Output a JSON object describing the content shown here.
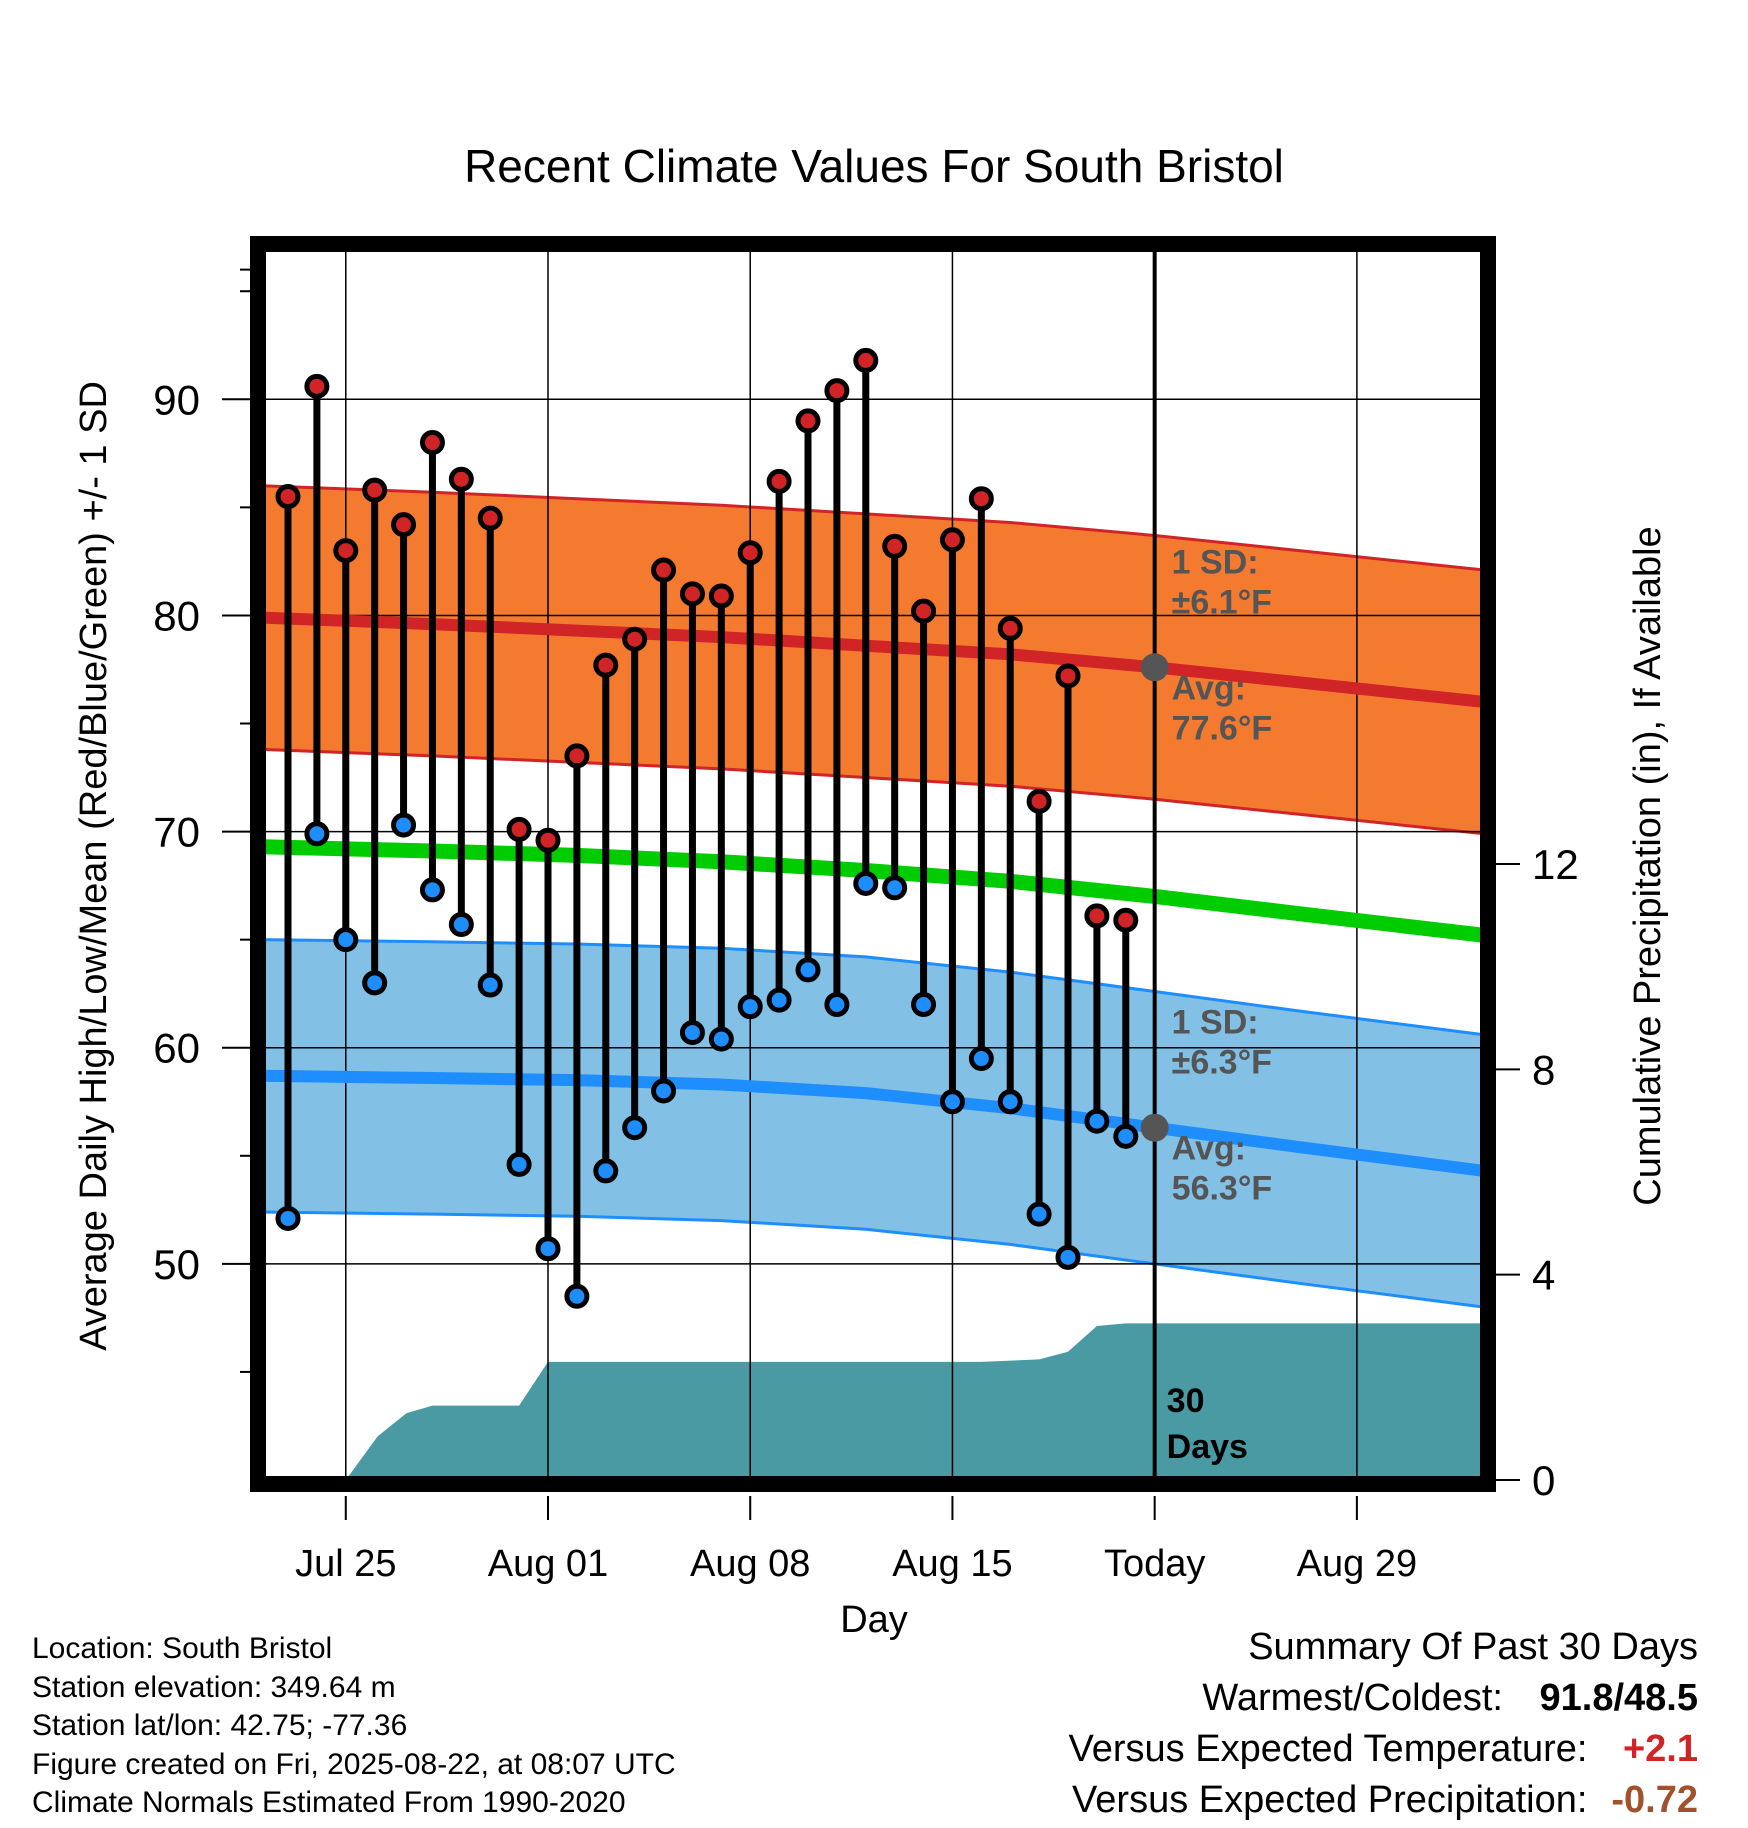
{
  "chart_data": {
    "type": "line",
    "title": "Recent Climate Values For South Bristol",
    "xlabel": "Day",
    "ylabel": "Average Daily High/Low/Mean (Red/Blue/Green) +/- 1 SD",
    "y2label": "Cumulative Precipitation (in), If Available",
    "ylim": [
      40,
      97
    ],
    "y2lim": [
      0,
      24
    ],
    "xlim": [
      -0.9,
      41.4
    ],
    "x_ticks": [
      {
        "day": 2,
        "label": "Jul 25"
      },
      {
        "day": 9,
        "label": "Aug 01"
      },
      {
        "day": 16,
        "label": "Aug 08"
      },
      {
        "day": 23,
        "label": "Aug 15"
      },
      {
        "day": 30,
        "label": "Today"
      },
      {
        "day": 37,
        "label": "Aug 29"
      }
    ],
    "y_ticks": [
      50,
      60,
      70,
      80,
      90
    ],
    "y2_ticks": [
      0,
      4,
      8,
      12
    ],
    "grid": true,
    "today_day": 30,
    "today_label": [
      "30",
      "Days"
    ],
    "highs": [
      85.5,
      90.6,
      83.0,
      85.8,
      84.2,
      88.0,
      86.3,
      84.5,
      70.1,
      69.6,
      73.5,
      77.7,
      78.9,
      82.1,
      81.0,
      80.9,
      82.9,
      86.2,
      89.0,
      90.4,
      91.8,
      83.2,
      80.2,
      83.5,
      85.4,
      79.4,
      71.4,
      77.2,
      66.1,
      65.9
    ],
    "lows": [
      52.1,
      69.9,
      65.0,
      63.0,
      70.3,
      67.3,
      65.7,
      62.9,
      54.6,
      50.7,
      48.5,
      54.3,
      56.3,
      58.0,
      60.7,
      60.4,
      61.9,
      62.2,
      63.6,
      62.0,
      67.6,
      67.4,
      62.0,
      57.5,
      59.5,
      57.5,
      52.3,
      50.3,
      56.6,
      55.9
    ],
    "normals": {
      "days": [
        -0.9,
        5,
        10,
        15,
        20,
        25,
        30,
        35,
        41.4
      ],
      "high_mean": [
        79.9,
        79.6,
        79.3,
        79.0,
        78.6,
        78.2,
        77.6,
        76.9,
        76.0
      ],
      "high_sd": 6.1,
      "low_mean": [
        58.7,
        58.6,
        58.5,
        58.3,
        57.9,
        57.2,
        56.3,
        55.4,
        54.3
      ],
      "low_sd": 6.3,
      "mean": [
        69.3,
        69.1,
        68.9,
        68.6,
        68.2,
        67.7,
        67.0,
        66.2,
        65.2
      ]
    },
    "precip_cumulative": {
      "days": [
        2.0,
        3.1,
        4.1,
        5.0,
        6.0,
        7.0,
        8.0,
        9.0,
        10.0,
        15.0,
        20.0,
        24.0,
        26.0,
        27.0,
        28.0,
        29.0,
        30.0,
        41.4
      ],
      "values": [
        0.0,
        0.85,
        1.3,
        1.45,
        1.45,
        1.45,
        1.45,
        2.3,
        2.3,
        2.3,
        2.3,
        2.3,
        2.35,
        2.5,
        3.0,
        3.05,
        3.05,
        3.05
      ]
    },
    "annotations": {
      "high_sd_line1": "1 SD:",
      "high_sd_line2": "±6.1°F",
      "high_avg_line1": "Avg:",
      "high_avg_line2": "77.6°F",
      "low_sd_line1": "1 SD:",
      "low_sd_line2": "±6.3°F",
      "low_avg_line1": "Avg:",
      "low_avg_line2": "56.3°F"
    },
    "colors": {
      "high_band": "#f47a30",
      "high_line": "#d02426",
      "low_band": "#82c0e6",
      "low_line": "#1e8eff",
      "mean_line": "#00cc00",
      "precip": "#4a9aa4",
      "high_marker": "#d02426",
      "low_marker": "#1e8eff",
      "today_marker": "#555555",
      "annotation": "#555555"
    }
  },
  "footer": {
    "location": "Location: South Bristol",
    "elevation": "Station elevation: 349.64 m",
    "latlon": "Station lat/lon: 42.75; -77.36",
    "created": "Figure created on Fri, 2025-08-22, at 08:07 UTC",
    "normals": "Climate Normals Estimated From 1990-2020"
  },
  "summary": {
    "title": "Summary Of Past 30 Days",
    "warm_cold_label": "Warmest/Coldest:",
    "warm_cold_value": "91.8/48.5",
    "temp_label": "Versus Expected Temperature:",
    "temp_value": "+2.1",
    "temp_color": "#d02426",
    "precip_label": "Versus Expected Precipitation:",
    "precip_value": "-0.72",
    "precip_color": "#a0522d"
  }
}
